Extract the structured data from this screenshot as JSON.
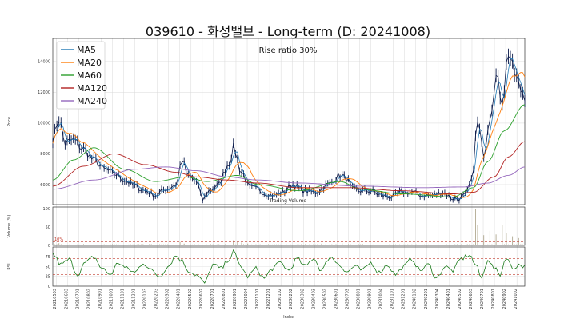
{
  "chart_data": {
    "type": "line",
    "title": "039610 - 화성밸브 - Long-term (D: 20241008)",
    "annotation": "Rise ratio 30%",
    "volume_label": "Trading Volume",
    "xlabel": "Index",
    "x_dates": [
      "20210503",
      "20210603",
      "20210701",
      "20210802",
      "20210901",
      "20211001",
      "20211101",
      "20211201",
      "20220103",
      "20220203",
      "20220302",
      "20220401",
      "20220502",
      "20220602",
      "20220701",
      "20220801",
      "20220901",
      "20221004",
      "20221101",
      "20221201",
      "20230102",
      "20230202",
      "20230302",
      "20230403",
      "20230502",
      "20230601",
      "20230703",
      "20230801",
      "20230901",
      "20231004",
      "20231101",
      "20231201",
      "20240102",
      "20240201",
      "20240304",
      "20240401",
      "20240502",
      "20240603",
      "20240701",
      "20240801",
      "20240902",
      "20241002"
    ],
    "price_panel": {
      "ylabel": "Price",
      "yticks": [
        6000,
        8000,
        10000,
        12000,
        14000
      ],
      "ylim": [
        4700,
        15500
      ],
      "legend": [
        "MA5",
        "MA20",
        "MA60",
        "MA120",
        "MA240"
      ],
      "colors": {
        "price": "#0b1a4a",
        "MA5": "#1f77b4",
        "MA20": "#ff7f0e",
        "MA60": "#2ca02c",
        "MA120": "#b22222",
        "MA240": "#9467bd"
      },
      "price_keypoints": [
        [
          0,
          9000
        ],
        [
          3,
          10300
        ],
        [
          6,
          8700
        ],
        [
          10,
          8900
        ],
        [
          15,
          8300
        ],
        [
          20,
          7600
        ],
        [
          25,
          7000
        ],
        [
          30,
          6700
        ],
        [
          35,
          6300
        ],
        [
          40,
          5900
        ],
        [
          45,
          5600
        ],
        [
          50,
          5300
        ],
        [
          55,
          5700
        ],
        [
          60,
          6000
        ],
        [
          63,
          7600
        ],
        [
          66,
          6500
        ],
        [
          70,
          6200
        ],
        [
          73,
          5000
        ],
        [
          76,
          5600
        ],
        [
          80,
          5900
        ],
        [
          86,
          7400
        ],
        [
          88,
          8400
        ],
        [
          92,
          6800
        ],
        [
          96,
          5800
        ],
        [
          100,
          5700
        ],
        [
          104,
          5400
        ],
        [
          108,
          5300
        ],
        [
          112,
          5500
        ],
        [
          117,
          6000
        ],
        [
          122,
          5600
        ],
        [
          128,
          5500
        ],
        [
          134,
          6000
        ],
        [
          140,
          6600
        ],
        [
          143,
          6400
        ],
        [
          146,
          5700
        ],
        [
          150,
          5600
        ],
        [
          155,
          5600
        ],
        [
          160,
          5300
        ],
        [
          165,
          5200
        ],
        [
          170,
          5500
        ],
        [
          175,
          5500
        ],
        [
          180,
          5300
        ],
        [
          185,
          5300
        ],
        [
          190,
          5500
        ],
        [
          195,
          5100
        ],
        [
          198,
          5100
        ],
        [
          201,
          5300
        ],
        [
          204,
          6200
        ],
        [
          207,
          10000
        ],
        [
          210,
          8000
        ],
        [
          213,
          10500
        ],
        [
          216,
          13000
        ],
        [
          219,
          11500
        ],
        [
          222,
          14600
        ],
        [
          225,
          13200
        ],
        [
          228,
          12200
        ],
        [
          230,
          11800
        ]
      ],
      "ma240_keypoints": [
        [
          0,
          5700
        ],
        [
          20,
          6300
        ],
        [
          40,
          7000
        ],
        [
          55,
          7150
        ],
        [
          70,
          6900
        ],
        [
          85,
          6500
        ],
        [
          100,
          6300
        ],
        [
          120,
          6100
        ],
        [
          150,
          5900
        ],
        [
          180,
          5800
        ],
        [
          200,
          5850
        ],
        [
          212,
          6100
        ],
        [
          222,
          6600
        ],
        [
          230,
          7150
        ]
      ],
      "ma120_keypoints": [
        [
          0,
          5900
        ],
        [
          15,
          7200
        ],
        [
          30,
          8000
        ],
        [
          45,
          7300
        ],
        [
          60,
          6800
        ],
        [
          70,
          6500
        ],
        [
          85,
          6300
        ],
        [
          100,
          6100
        ],
        [
          120,
          5800
        ],
        [
          145,
          5800
        ],
        [
          170,
          5600
        ],
        [
          195,
          5400
        ],
        [
          205,
          5500
        ],
        [
          215,
          6500
        ],
        [
          222,
          7800
        ],
        [
          230,
          8800
        ]
      ],
      "ma60_keypoints": [
        [
          0,
          6300
        ],
        [
          10,
          7600
        ],
        [
          20,
          8400
        ],
        [
          35,
          7000
        ],
        [
          50,
          6200
        ],
        [
          65,
          6500
        ],
        [
          75,
          6200
        ],
        [
          90,
          6600
        ],
        [
          100,
          6000
        ],
        [
          120,
          5600
        ],
        [
          140,
          6200
        ],
        [
          150,
          5700
        ],
        [
          170,
          5400
        ],
        [
          195,
          5200
        ],
        [
          205,
          5800
        ],
        [
          212,
          7500
        ],
        [
          220,
          9500
        ],
        [
          230,
          11200
        ]
      ]
    },
    "volume_panel": {
      "ylabel": "Volume (%)",
      "yticks": [
        0,
        50,
        100
      ],
      "threshold_label": "10%",
      "spikes": [
        [
          3,
          6
        ],
        [
          62,
          9
        ],
        [
          64,
          5
        ],
        [
          88,
          14
        ],
        [
          90,
          9
        ],
        [
          92,
          8
        ],
        [
          95,
          5
        ],
        [
          131,
          5
        ],
        [
          141,
          6
        ],
        [
          206,
          100
        ],
        [
          207,
          55
        ],
        [
          210,
          28
        ],
        [
          213,
          40
        ],
        [
          216,
          30
        ],
        [
          219,
          55
        ],
        [
          221,
          35
        ],
        [
          224,
          25
        ],
        [
          227,
          20
        ]
      ]
    },
    "rsi_panel": {
      "ylabel": "RSI",
      "yticks": [
        0,
        25,
        50,
        75
      ],
      "bands": [
        30,
        70
      ],
      "keypoints": [
        [
          0,
          82
        ],
        [
          4,
          55
        ],
        [
          8,
          68
        ],
        [
          12,
          30
        ],
        [
          16,
          60
        ],
        [
          20,
          75
        ],
        [
          24,
          45
        ],
        [
          28,
          30
        ],
        [
          32,
          60
        ],
        [
          36,
          45
        ],
        [
          40,
          35
        ],
        [
          44,
          60
        ],
        [
          48,
          40
        ],
        [
          52,
          25
        ],
        [
          56,
          50
        ],
        [
          60,
          78
        ],
        [
          63,
          65
        ],
        [
          66,
          40
        ],
        [
          70,
          28
        ],
        [
          74,
          8
        ],
        [
          78,
          55
        ],
        [
          82,
          45
        ],
        [
          86,
          70
        ],
        [
          88,
          88
        ],
        [
          91,
          55
        ],
        [
          95,
          25
        ],
        [
          99,
          45
        ],
        [
          103,
          20
        ],
        [
          107,
          45
        ],
        [
          111,
          60
        ],
        [
          115,
          40
        ],
        [
          119,
          70
        ],
        [
          123,
          50
        ],
        [
          127,
          72
        ],
        [
          131,
          40
        ],
        [
          135,
          75
        ],
        [
          139,
          60
        ],
        [
          143,
          35
        ],
        [
          147,
          50
        ],
        [
          151,
          40
        ],
        [
          155,
          60
        ],
        [
          159,
          35
        ],
        [
          163,
          55
        ],
        [
          167,
          30
        ],
        [
          171,
          50
        ],
        [
          175,
          70
        ],
        [
          179,
          40
        ],
        [
          183,
          55
        ],
        [
          187,
          20
        ],
        [
          191,
          50
        ],
        [
          195,
          40
        ],
        [
          199,
          70
        ],
        [
          203,
          80
        ],
        [
          206,
          55
        ],
        [
          209,
          20
        ],
        [
          212,
          70
        ],
        [
          215,
          45
        ],
        [
          218,
          30
        ],
        [
          221,
          75
        ],
        [
          224,
          45
        ],
        [
          227,
          55
        ],
        [
          230,
          50
        ]
      ]
    }
  }
}
